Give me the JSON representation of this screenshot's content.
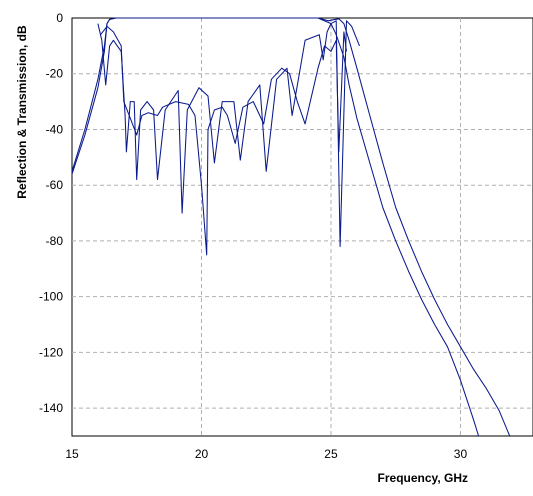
{
  "chart_data": {
    "type": "line",
    "xlabel": "Frequency, GHz",
    "ylabel": "Reflection & Transmission, dB",
    "xlim": [
      15,
      32.8
    ],
    "ylim": [
      -150,
      0
    ],
    "xticks": [
      15,
      20,
      25,
      30
    ],
    "yticks": [
      0,
      -20,
      -40,
      -60,
      -80,
      -100,
      -120,
      -140
    ],
    "grid": true,
    "legend": "none",
    "series_color": "#0a1a8c",
    "series": [
      {
        "x": [
          15.0,
          15.5,
          16.0,
          16.25,
          16.35,
          16.45,
          16.7,
          17.0,
          20.0,
          24.5,
          24.9,
          25.1,
          25.3,
          25.5,
          25.7,
          26.0,
          26.5,
          27.0,
          27.5,
          28.0,
          28.5,
          29.0,
          29.5,
          30.0,
          30.5,
          31.0,
          31.5,
          31.9
        ],
        "y": [
          -55,
          -40,
          -22,
          -10,
          -2,
          -0.5,
          0,
          0,
          0,
          0,
          -1,
          -0.6,
          -0.3,
          -2,
          -8,
          -18,
          -35,
          -52,
          -68,
          -80,
          -91,
          -101,
          -110,
          -118,
          -126,
          -133,
          -141,
          -150
        ]
      },
      {
        "x": [
          15.0,
          15.5,
          16.0,
          16.25,
          16.35,
          16.45,
          16.7,
          17.0,
          20.0,
          24.5,
          25.0,
          25.2,
          25.5,
          25.7,
          26.0,
          26.5,
          27.0,
          27.5,
          28.0,
          28.5,
          29.0,
          29.5,
          30.0,
          30.5,
          30.7
        ],
        "y": [
          -56,
          -42,
          -25,
          -12,
          -2,
          -0.5,
          0,
          0,
          0,
          0,
          -2,
          -6,
          -14,
          -24,
          -36,
          -52,
          -68,
          -80,
          -91,
          -101,
          -110,
          -118,
          -130,
          -144,
          -150
        ]
      },
      {
        "x": [
          16.0,
          16.15,
          16.3,
          16.45,
          16.6,
          16.9,
          17.05,
          17.1,
          17.25,
          17.4,
          17.5,
          17.65,
          17.9,
          18.15,
          18.3,
          18.6,
          19.1,
          19.25,
          19.45,
          19.9,
          20.25,
          20.5,
          20.8,
          21.25,
          21.5,
          21.8,
          22.25,
          22.5,
          22.9,
          23.3,
          23.5,
          24.0,
          24.55,
          24.7,
          24.85,
          25.0,
          25.2,
          25.35,
          25.6,
          25.8,
          26.1
        ],
        "y": [
          -2,
          -8,
          -24,
          -10,
          -8,
          -12,
          -35,
          -48,
          -30,
          -30,
          -58,
          -33,
          -30,
          -33,
          -58,
          -33,
          -26,
          -70,
          -33,
          -25,
          -28,
          -52,
          -30,
          -30,
          -51,
          -30,
          -24,
          -55,
          -22,
          -18,
          -35,
          -8,
          -6,
          -15,
          -5,
          -2,
          -1,
          -82,
          -1,
          -3,
          -10
        ]
      },
      {
        "x": [
          16.1,
          16.35,
          16.6,
          16.9,
          17.0,
          17.25,
          17.5,
          17.7,
          17.95,
          18.3,
          18.5,
          19.0,
          19.5,
          19.75,
          20.0,
          20.2,
          20.25,
          20.5,
          20.8,
          21.0,
          21.3,
          21.6,
          22.0,
          22.4,
          22.7,
          23.1,
          23.4,
          23.7,
          24.0,
          24.5,
          24.75,
          25.0,
          25.2,
          25.3,
          25.5,
          25.6
        ],
        "y": [
          -6,
          -3,
          -5,
          -10,
          -30,
          -36,
          -42,
          -35,
          -34,
          -35,
          -32,
          -30,
          -31,
          -35,
          -60,
          -85,
          -40,
          -33,
          -32,
          -35,
          -45,
          -32,
          -30,
          -38,
          -22,
          -18,
          -20,
          -30,
          -38,
          -18,
          -10,
          -12,
          -8,
          -48,
          -5,
          -12
        ]
      }
    ]
  }
}
